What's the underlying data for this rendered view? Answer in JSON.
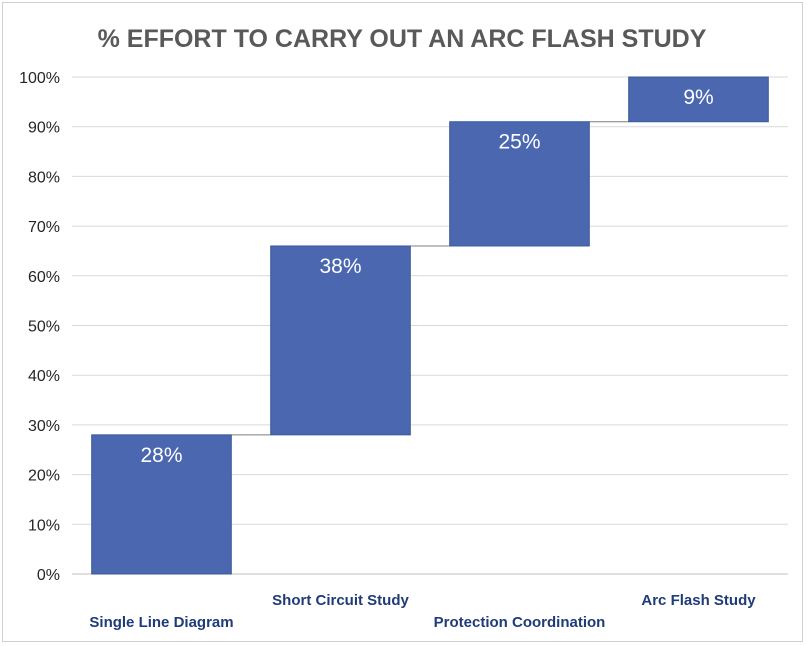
{
  "chart_data": {
    "type": "bar",
    "subtype": "waterfall",
    "title": "% EFFORT TO CARRY OUT AN ARC FLASH STUDY",
    "categories": [
      "Single Line Diagram",
      "Short Circuit Study",
      "Protection Coordination",
      "Arc Flash Study"
    ],
    "values": [
      28,
      38,
      25,
      9
    ],
    "data_labels": [
      "28%",
      "38%",
      "25%",
      "9%"
    ],
    "ylim": [
      0,
      100
    ],
    "yticks": [
      "0%",
      "10%",
      "20%",
      "30%",
      "40%",
      "50%",
      "60%",
      "70%",
      "80%",
      "90%",
      "100%"
    ],
    "grid": true,
    "legend": "none",
    "bar_color": "#4a67b0",
    "category_label_color": "#1f3b78"
  }
}
